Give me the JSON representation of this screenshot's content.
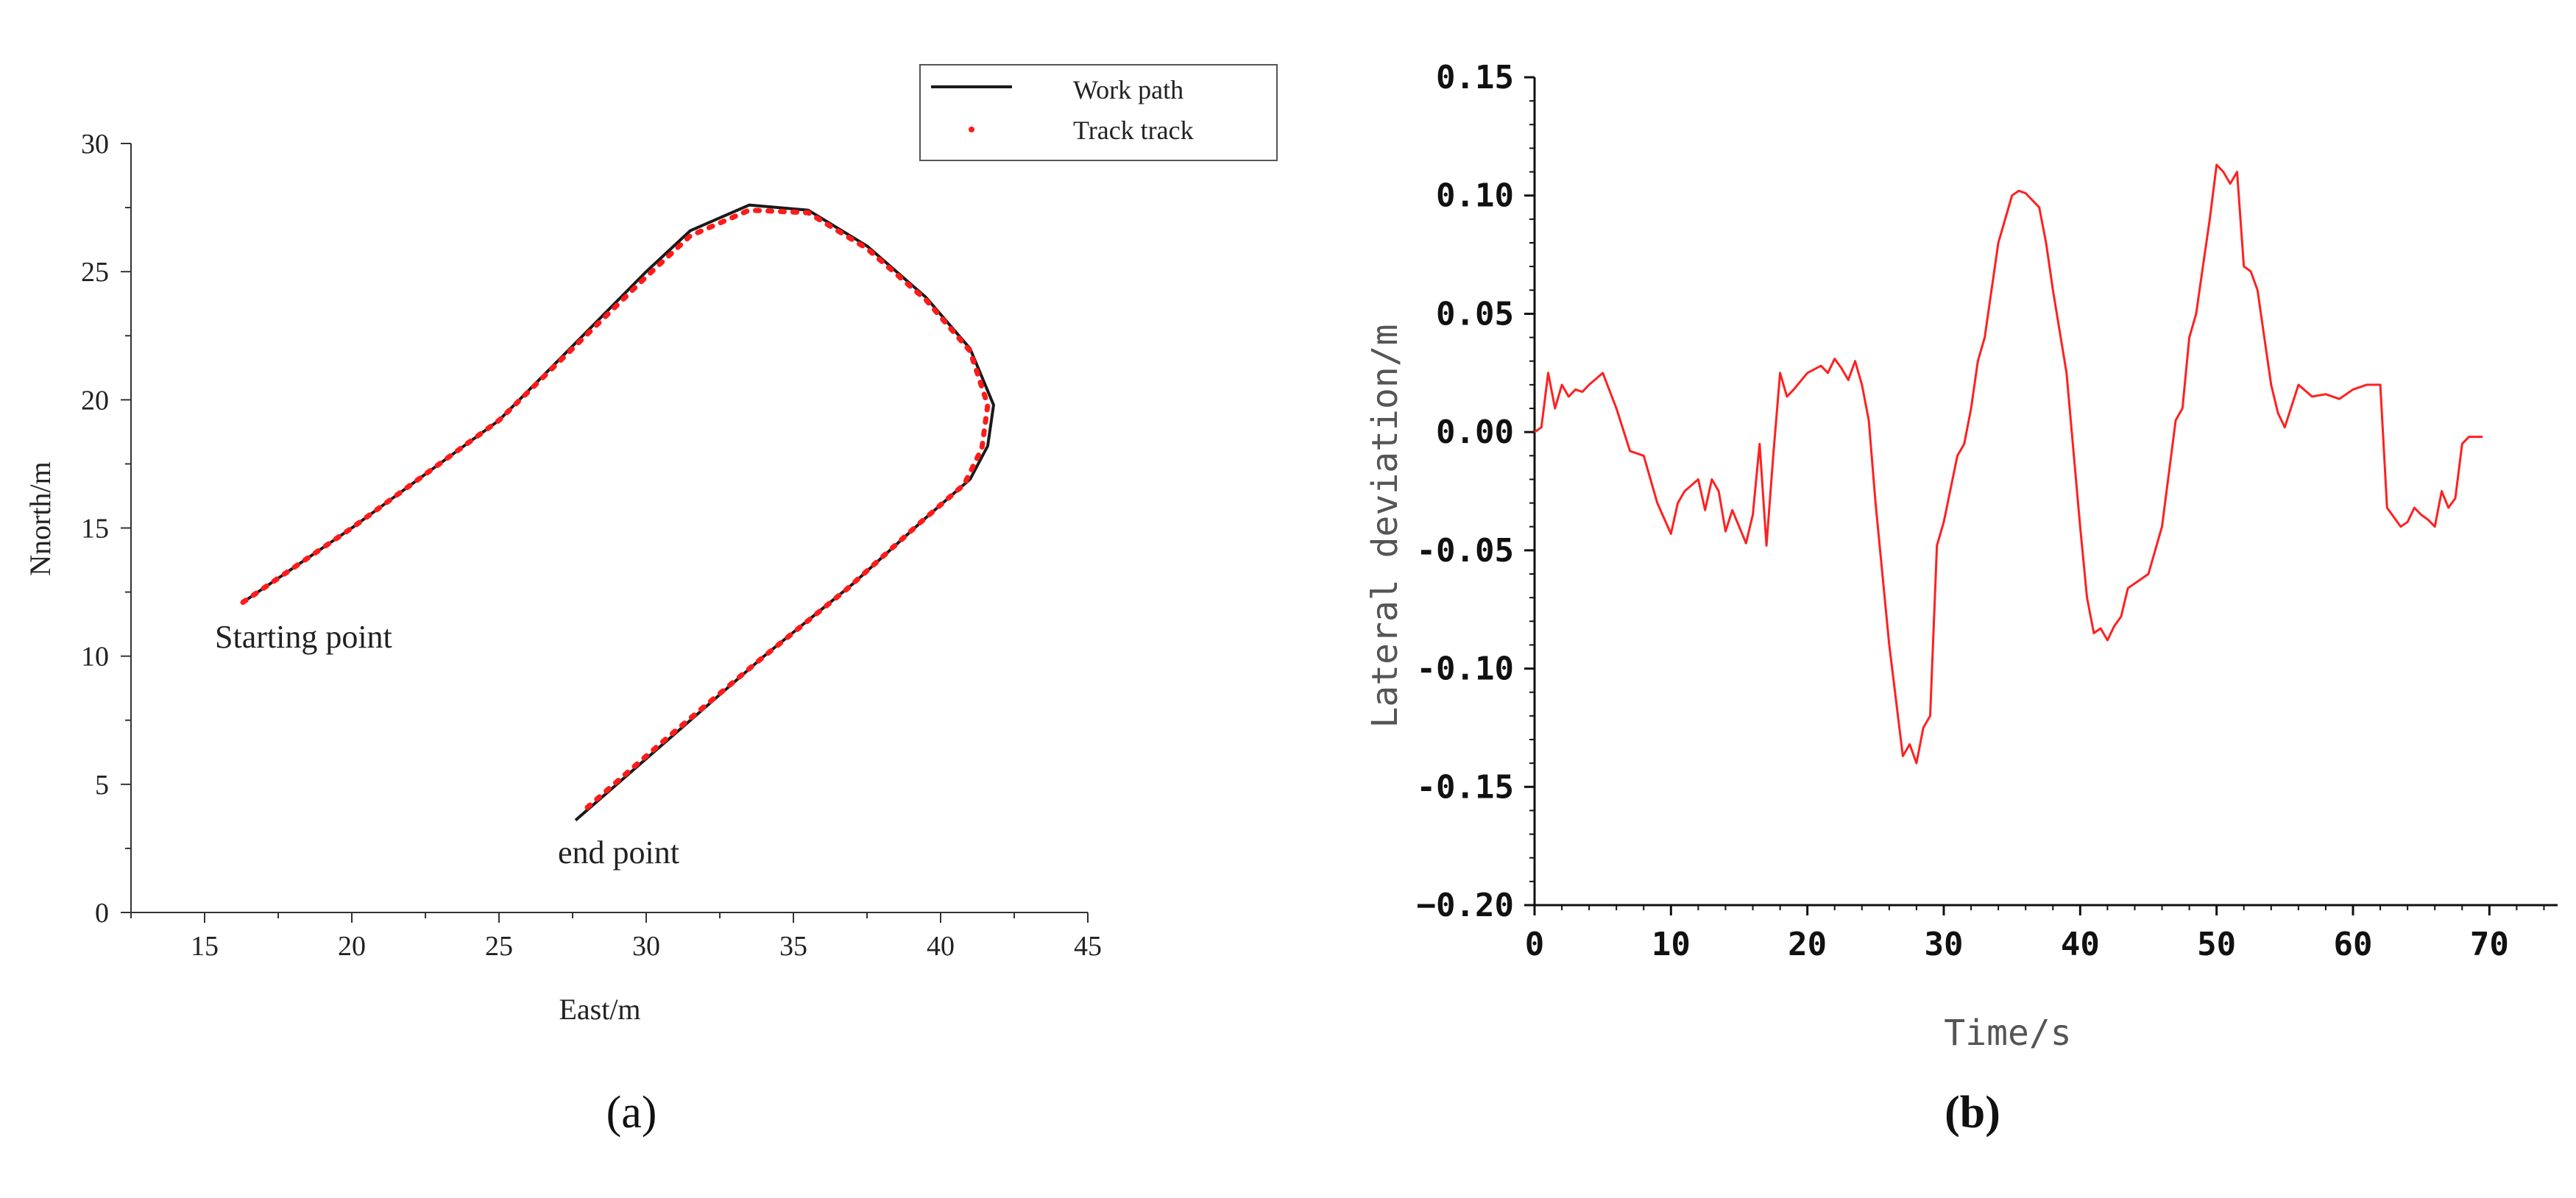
{
  "panels": {
    "a": {
      "label": "(a)"
    },
    "b": {
      "label": "(b)"
    }
  },
  "chart_data": [
    {
      "type": "line",
      "title": "",
      "xlabel": "East/m",
      "ylabel": "Nnorth/m",
      "xlim": [
        12.5,
        45
      ],
      "ylim": [
        0,
        30
      ],
      "xticks": [
        15,
        20,
        25,
        30,
        35,
        40,
        45
      ],
      "yticks": [
        0,
        5,
        10,
        15,
        20,
        25,
        30
      ],
      "legend": {
        "position": "top-right",
        "entries": [
          "Work path",
          "Track track"
        ]
      },
      "annotations": [
        "Starting point",
        "end point"
      ],
      "colors": {
        "work_path": "#1a1a1a",
        "track": "#ff1a1a"
      },
      "series": [
        {
          "name": "Work path",
          "style": "solid",
          "x": [
            16.3,
            20,
            25,
            30,
            31.5,
            33.5,
            35.5,
            37.5,
            39.5,
            41,
            41.8,
            41.6,
            41,
            39.5,
            37,
            34,
            31,
            27.6
          ],
          "y": [
            12.1,
            15,
            19.2,
            25,
            26.6,
            27.6,
            27.4,
            26,
            24,
            22,
            19.8,
            18.2,
            16.9,
            15.4,
            12.8,
            10,
            7,
            3.6
          ]
        },
        {
          "name": "Track track",
          "style": "dotted",
          "x": [
            16.3,
            20,
            25,
            30,
            31.5,
            33.5,
            35.5,
            37.5,
            39.5,
            41,
            41.6,
            41.4,
            40.8,
            39.3,
            36.8,
            33.8,
            30.8,
            27.9
          ],
          "y": [
            12.1,
            15,
            19.2,
            24.8,
            26.4,
            27.4,
            27.3,
            25.9,
            23.9,
            21.9,
            19.8,
            18.1,
            16.7,
            15.2,
            12.6,
            9.8,
            6.9,
            4
          ]
        }
      ]
    },
    {
      "type": "line",
      "title": "",
      "xlabel": "Time/s",
      "ylabel": "Lateral deviation/m",
      "xlim": [
        0,
        75
      ],
      "ylim": [
        -0.2,
        0.15
      ],
      "xticks": [
        0,
        10,
        20,
        30,
        40,
        50,
        60,
        70
      ],
      "xtick_labels": [
        "0",
        "10",
        "20",
        "30",
        "40",
        "50",
        "60",
        "70"
      ],
      "yticks": [
        0.15,
        0.1,
        0.05,
        0,
        -0.05,
        -0.1,
        -0.15,
        -0.2
      ],
      "ytick_labels": [
        "0.15",
        "0.10",
        "0.05",
        "0.00",
        "-0.05",
        "-0.10",
        "-0.15",
        "−0.20"
      ],
      "grid": false,
      "colors": {
        "line": "#ff2020"
      },
      "series": [
        {
          "x": [
            0,
            0.5,
            1,
            1.5,
            2,
            2.5,
            3,
            3.5,
            4,
            5,
            6,
            7,
            8,
            9,
            10,
            10.5,
            11,
            12,
            12.5,
            13,
            13.5,
            14,
            14.5,
            15,
            15.5,
            16,
            16.5,
            17,
            17.5,
            18,
            18.5,
            19,
            20,
            21,
            21.5,
            22,
            22.5,
            23,
            23.5,
            24,
            24.5,
            25,
            25.5,
            26,
            27,
            27.5,
            28,
            28.5,
            29,
            29.5,
            30,
            31,
            31.5,
            32,
            32.5,
            33,
            34,
            34.5,
            35,
            35.5,
            36,
            37,
            37.5,
            38,
            39,
            40,
            40.5,
            41,
            41.5,
            42,
            42.5,
            43,
            43.5,
            44,
            45,
            46,
            47,
            47.5,
            48,
            48.5,
            49,
            49.5,
            50,
            50.5,
            51,
            51.5,
            52,
            52.5,
            53,
            53.5,
            54,
            54.5,
            55,
            56,
            57,
            58,
            59,
            60,
            61,
            62,
            62.5,
            63,
            63.5,
            64,
            64.5,
            65,
            65.5,
            66,
            66.5,
            67,
            67.5,
            68,
            68.5,
            69,
            69.5
          ],
          "y": [
            0,
            0.002,
            0.025,
            0.01,
            0.02,
            0.015,
            0.018,
            0.017,
            0.02,
            0.025,
            0.01,
            -0.008,
            -0.01,
            -0.03,
            -0.043,
            -0.03,
            -0.025,
            -0.02,
            -0.033,
            -0.02,
            -0.025,
            -0.042,
            -0.033,
            -0.04,
            -0.047,
            -0.035,
            -0.005,
            -0.048,
            -0.01,
            0.025,
            0.015,
            0.018,
            0.025,
            0.028,
            0.025,
            0.031,
            0.027,
            0.022,
            0.03,
            0.02,
            0.005,
            -0.03,
            -0.06,
            -0.09,
            -0.137,
            -0.132,
            -0.14,
            -0.125,
            -0.12,
            -0.048,
            -0.038,
            -0.01,
            -0.005,
            0.01,
            0.03,
            0.04,
            0.08,
            0.09,
            0.1,
            0.102,
            0.101,
            0.095,
            0.08,
            0.06,
            0.025,
            -0.04,
            -0.07,
            -0.085,
            -0.083,
            -0.088,
            -0.082,
            -0.078,
            -0.066,
            -0.064,
            -0.06,
            -0.04,
            0.005,
            0.01,
            0.04,
            0.05,
            0.07,
            0.09,
            0.113,
            0.11,
            0.105,
            0.11,
            0.07,
            0.068,
            0.06,
            0.04,
            0.02,
            0.008,
            0.002,
            0.02,
            0.015,
            0.016,
            0.014,
            0.018,
            0.02,
            0.02,
            -0.032,
            -0.036,
            -0.04,
            -0.038,
            -0.032,
            -0.035,
            -0.037,
            -0.04,
            -0.025,
            -0.032,
            -0.028,
            -0.005,
            -0.002,
            -0.002,
            -0.002
          ]
        }
      ]
    }
  ]
}
